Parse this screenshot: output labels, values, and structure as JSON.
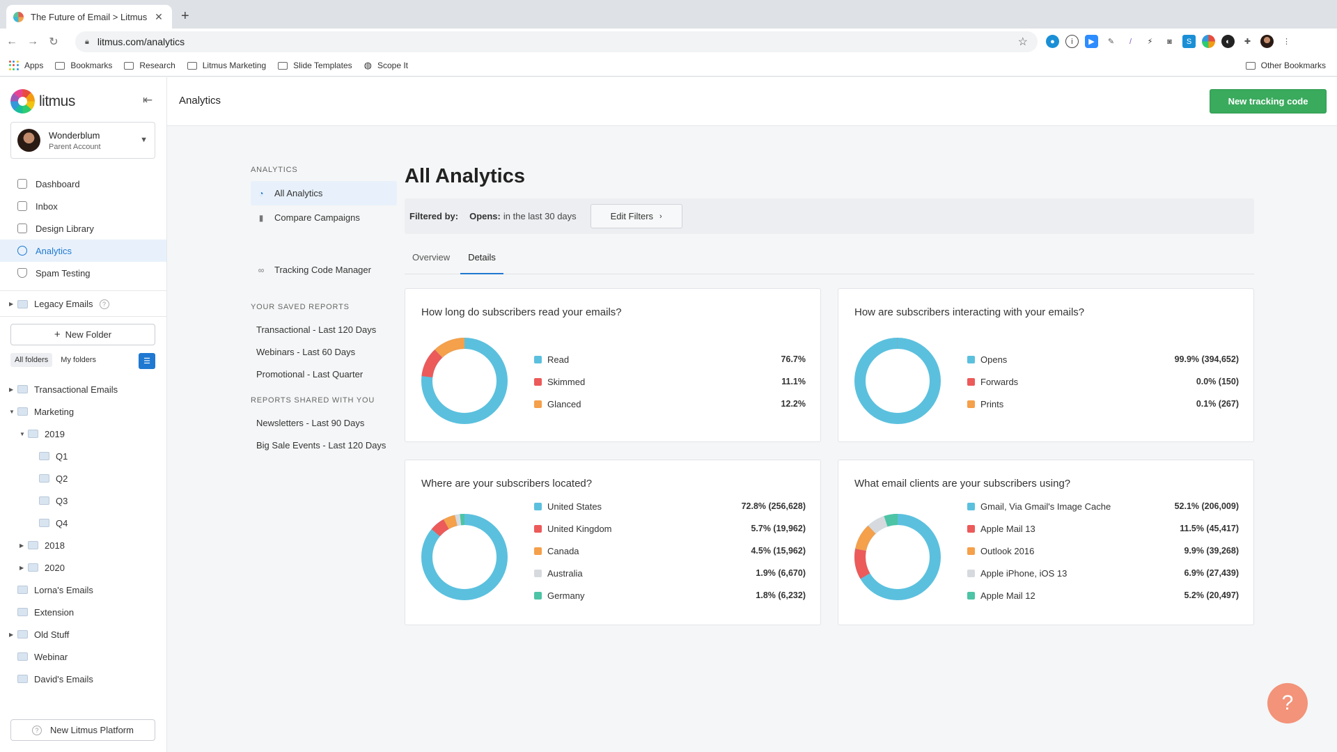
{
  "browser": {
    "tab_title": "The Future of Email > Litmus",
    "url": "litmus.com/analytics",
    "bookmarks": [
      "Apps",
      "Bookmarks",
      "Research",
      "Litmus Marketing",
      "Slide Templates",
      "Scope It"
    ],
    "other_bookmarks": "Other Bookmarks"
  },
  "sidebar": {
    "logo": "litmus",
    "account_name": "Wonderblum",
    "account_type": "Parent Account",
    "nav": [
      {
        "label": "Dashboard"
      },
      {
        "label": "Inbox"
      },
      {
        "label": "Design Library"
      },
      {
        "label": "Analytics"
      },
      {
        "label": "Spam Testing"
      }
    ],
    "legacy": "Legacy Emails",
    "new_folder": "New Folder",
    "folder_tabs": [
      "All folders",
      "My folders"
    ],
    "tree": [
      {
        "label": "Transactional Emails"
      },
      {
        "label": "Marketing"
      },
      {
        "label": "2019"
      },
      {
        "label": "Q1"
      },
      {
        "label": "Q2"
      },
      {
        "label": "Q3"
      },
      {
        "label": "Q4"
      },
      {
        "label": "2018"
      },
      {
        "label": "2020"
      },
      {
        "label": "Lorna's Emails"
      },
      {
        "label": "Extension"
      },
      {
        "label": "Old Stuff"
      },
      {
        "label": "Webinar"
      },
      {
        "label": "David's Emails"
      }
    ],
    "platform": "New Litmus Platform"
  },
  "topbar": {
    "title": "Analytics",
    "new_tracking": "New tracking code"
  },
  "subnav": {
    "heading": "ANALYTICS",
    "items": [
      "All Analytics",
      "Compare Campaigns",
      "Tracking Code Manager"
    ],
    "saved_heading": "YOUR SAVED REPORTS",
    "saved": [
      "Transactional - Last 120 Days",
      "Webinars - Last 60 Days",
      "Promotional - Last Quarter"
    ],
    "shared_heading": "REPORTS SHARED WITH YOU",
    "shared": [
      "Newsletters - Last 90 Days",
      "Big Sale Events - Last 120 Days"
    ]
  },
  "main": {
    "title": "All Analytics",
    "filter_label": "Filtered by:",
    "filter_key": "Opens:",
    "filter_value": "in the last 30 days",
    "edit_filters": "Edit Filters",
    "tabs": [
      "Overview",
      "Details"
    ]
  },
  "colors": {
    "blue": "#5bc0de",
    "red": "#ec5a5a",
    "orange": "#f5a04a",
    "gray": "#d6dadf",
    "teal": "#4cc4a5",
    "accent": "#1f78d1",
    "green": "#3aaa5d"
  },
  "cards": [
    {
      "title": "How long do subscribers read your emails?",
      "rows": [
        {
          "label": "Read",
          "value": "76.7%",
          "pct": 76.7,
          "color": "#5bc0de"
        },
        {
          "label": "Skimmed",
          "value": "11.1%",
          "pct": 11.1,
          "color": "#ec5a5a"
        },
        {
          "label": "Glanced",
          "value": "12.2%",
          "pct": 12.2,
          "color": "#f5a04a"
        }
      ]
    },
    {
      "title": "How are subscribers interacting with your emails?",
      "rows": [
        {
          "label": "Opens",
          "value": "99.9% (394,652)",
          "pct": 99.9,
          "color": "#5bc0de"
        },
        {
          "label": "Forwards",
          "value": "0.0% (150)",
          "pct": 0.04,
          "color": "#ec5a5a"
        },
        {
          "label": "Prints",
          "value": "0.1% (267)",
          "pct": 0.1,
          "color": "#f5a04a"
        }
      ]
    },
    {
      "title": "Where are your subscribers located?",
      "rows": [
        {
          "label": "United States",
          "value": "72.8% (256,628)",
          "pct": 72.8,
          "color": "#5bc0de"
        },
        {
          "label": "United Kingdom",
          "value": "5.7% (19,962)",
          "pct": 5.7,
          "color": "#ec5a5a"
        },
        {
          "label": "Canada",
          "value": "4.5% (15,962)",
          "pct": 4.5,
          "color": "#f5a04a"
        },
        {
          "label": "Australia",
          "value": "1.9% (6,670)",
          "pct": 1.9,
          "color": "#d6dadf"
        },
        {
          "label": "Germany",
          "value": "1.8% (6,232)",
          "pct": 1.8,
          "color": "#4cc4a5"
        }
      ]
    },
    {
      "title": "What email clients are your subscribers using?",
      "rows": [
        {
          "label": "Gmail, Via Gmail's Image Cache",
          "value": "52.1% (206,009)",
          "pct": 52.1,
          "color": "#5bc0de"
        },
        {
          "label": "Apple Mail 13",
          "value": "11.5% (45,417)",
          "pct": 11.5,
          "color": "#ec5a5a"
        },
        {
          "label": "Outlook 2016",
          "value": "9.9% (39,268)",
          "pct": 9.9,
          "color": "#f5a04a"
        },
        {
          "label": "Apple iPhone, iOS 13",
          "value": "6.9% (27,439)",
          "pct": 6.9,
          "color": "#d6dadf"
        },
        {
          "label": "Apple Mail 12",
          "value": "5.2% (20,497)",
          "pct": 5.2,
          "color": "#4cc4a5"
        }
      ]
    }
  ],
  "help_fab": "?"
}
